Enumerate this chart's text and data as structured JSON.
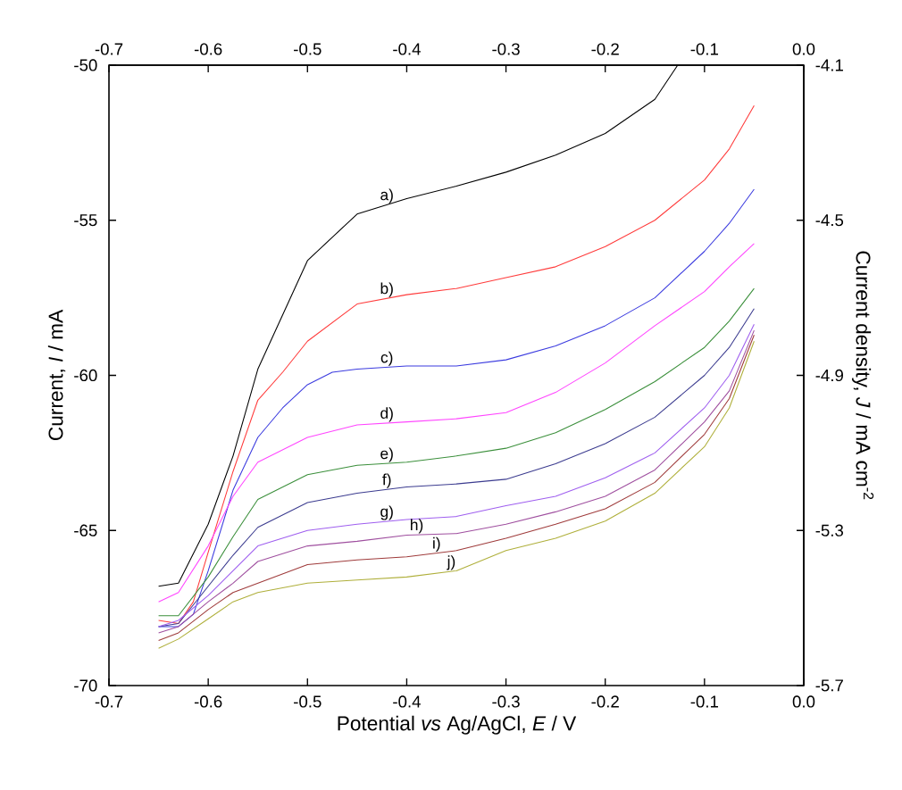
{
  "chart_data": {
    "type": "line",
    "xlabel": "Potential *vs* Ag/AgCl, *E* / V",
    "ylabel": "Current, *I* / mA",
    "y2label": "Current density, *J* / mA cm$^{-2}$",
    "xlim": [
      -0.7,
      0.0
    ],
    "xticks": [
      -0.7,
      -0.6,
      -0.5,
      -0.4,
      -0.3,
      -0.2,
      -0.1,
      {
        "value": 0.0,
        "label": "0.0"
      }
    ],
    "x2lim": [
      -0.7,
      0.0
    ],
    "x2ticks": [
      -0.7,
      -0.6,
      -0.5,
      -0.4,
      -0.3,
      -0.2,
      -0.1,
      {
        "value": 0.0,
        "label": "0.0"
      }
    ],
    "ylim": [
      -70,
      -50
    ],
    "yticks": [
      -70,
      -65,
      -60,
      -55,
      -50
    ],
    "y2lim": [
      -5.7,
      -4.1
    ],
    "y2ticks": [
      -5.7,
      -5.3,
      -4.9,
      -4.5,
      -4.1
    ],
    "marker": "none",
    "line_style": "solid",
    "series": [
      {
        "color": "#000000",
        "x": [
          -0.65,
          -0.63,
          -0.6,
          -0.575,
          -0.55,
          -0.5,
          -0.45,
          -0.4,
          -0.35,
          -0.3,
          -0.25,
          -0.2,
          -0.15,
          -0.127
        ],
        "values": [
          -66.8,
          -66.7,
          -64.8,
          -62.6,
          -59.8,
          -56.3,
          -54.8,
          -54.3,
          -53.9,
          -53.45,
          -52.9,
          -52.2,
          -51.1,
          -50.0
        ]
      },
      {
        "color": "#ff3b3b",
        "x": [
          -0.65,
          -0.63,
          -0.615,
          -0.6,
          -0.575,
          -0.55,
          -0.525,
          -0.5,
          -0.45,
          -0.4,
          -0.35,
          -0.3,
          -0.25,
          -0.2,
          -0.15,
          -0.1,
          -0.075,
          -0.05
        ],
        "values": [
          -67.9,
          -68.0,
          -67.3,
          -65.7,
          -63.1,
          -60.8,
          -59.9,
          -58.9,
          -57.7,
          -57.4,
          -57.2,
          -56.85,
          -56.5,
          -55.85,
          -55.0,
          -53.7,
          -52.7,
          -51.3
        ]
      },
      {
        "color": "#3b3bdf",
        "x": [
          -0.65,
          -0.63,
          -0.615,
          -0.6,
          -0.575,
          -0.55,
          -0.525,
          -0.5,
          -0.475,
          -0.45,
          -0.4,
          -0.35,
          -0.3,
          -0.25,
          -0.2,
          -0.15,
          -0.1,
          -0.075,
          -0.05
        ],
        "values": [
          -68.1,
          -68.1,
          -67.7,
          -66.3,
          -63.7,
          -62.0,
          -61.05,
          -60.3,
          -59.9,
          -59.8,
          -59.7,
          -59.7,
          -59.5,
          -59.05,
          -58.4,
          -57.5,
          -56.0,
          -55.1,
          -54.0
        ]
      },
      {
        "color": "#ff44ff",
        "x": [
          -0.65,
          -0.63,
          -0.6,
          -0.575,
          -0.55,
          -0.5,
          -0.45,
          -0.4,
          -0.35,
          -0.3,
          -0.25,
          -0.2,
          -0.15,
          -0.1,
          -0.075,
          -0.05
        ],
        "values": [
          -67.3,
          -67.0,
          -65.5,
          -63.9,
          -62.8,
          -62.0,
          -61.6,
          -61.5,
          -61.4,
          -61.2,
          -60.55,
          -59.6,
          -58.4,
          -57.3,
          -56.5,
          -55.75
        ]
      },
      {
        "color": "#3b8f3b",
        "x": [
          -0.65,
          -0.63,
          -0.6,
          -0.575,
          -0.55,
          -0.5,
          -0.45,
          -0.4,
          -0.35,
          -0.3,
          -0.25,
          -0.2,
          -0.15,
          -0.1,
          -0.075,
          -0.05
        ],
        "values": [
          -67.75,
          -67.75,
          -66.5,
          -65.2,
          -64.0,
          -63.2,
          -62.9,
          -62.8,
          -62.6,
          -62.35,
          -61.85,
          -61.1,
          -60.2,
          -59.1,
          -58.25,
          -57.2
        ]
      },
      {
        "color": "#3b3b8f",
        "x": [
          -0.65,
          -0.63,
          -0.6,
          -0.575,
          -0.55,
          -0.5,
          -0.45,
          -0.4,
          -0.35,
          -0.3,
          -0.25,
          -0.2,
          -0.15,
          -0.1,
          -0.075,
          -0.05
        ],
        "values": [
          -68.1,
          -68.0,
          -66.8,
          -65.8,
          -64.9,
          -64.1,
          -63.8,
          -63.6,
          -63.5,
          -63.35,
          -62.85,
          -62.2,
          -61.35,
          -60.0,
          -59.1,
          -57.85
        ]
      },
      {
        "color": "#9f5fef",
        "x": [
          -0.65,
          -0.63,
          -0.6,
          -0.575,
          -0.55,
          -0.5,
          -0.45,
          -0.4,
          -0.35,
          -0.3,
          -0.25,
          -0.2,
          -0.15,
          -0.1,
          -0.075,
          -0.05
        ],
        "values": [
          -68.1,
          -67.9,
          -67.1,
          -66.3,
          -65.5,
          -65.0,
          -64.8,
          -64.65,
          -64.55,
          -64.2,
          -63.9,
          -63.3,
          -62.5,
          -61.05,
          -60.0,
          -58.35
        ]
      },
      {
        "color": "#9f4f9f",
        "x": [
          -0.65,
          -0.63,
          -0.6,
          -0.575,
          -0.55,
          -0.5,
          -0.45,
          -0.4,
          -0.35,
          -0.3,
          -0.25,
          -0.2,
          -0.15,
          -0.1,
          -0.075,
          -0.05
        ],
        "values": [
          -68.3,
          -68.1,
          -67.3,
          -66.7,
          -66.0,
          -65.5,
          -65.35,
          -65.15,
          -65.1,
          -64.8,
          -64.4,
          -63.9,
          -63.05,
          -61.5,
          -60.5,
          -58.55
        ]
      },
      {
        "color": "#9f3b3b",
        "x": [
          -0.65,
          -0.63,
          -0.6,
          -0.575,
          -0.55,
          -0.5,
          -0.45,
          -0.4,
          -0.35,
          -0.3,
          -0.25,
          -0.2,
          -0.15,
          -0.1,
          -0.075,
          -0.05
        ],
        "values": [
          -68.55,
          -68.3,
          -67.55,
          -67.0,
          -66.7,
          -66.1,
          -65.95,
          -65.85,
          -65.65,
          -65.25,
          -64.8,
          -64.3,
          -63.45,
          -61.9,
          -60.75,
          -58.7
        ]
      },
      {
        "color": "#afaf3b",
        "x": [
          -0.65,
          -0.63,
          -0.6,
          -0.575,
          -0.55,
          -0.5,
          -0.45,
          -0.4,
          -0.35,
          -0.3,
          -0.25,
          -0.2,
          -0.15,
          -0.1,
          -0.075,
          -0.05
        ],
        "values": [
          -68.8,
          -68.5,
          -67.85,
          -67.3,
          -67.0,
          -66.7,
          -66.6,
          -66.5,
          -66.3,
          -65.65,
          -65.25,
          -64.7,
          -63.8,
          -62.3,
          -61.05,
          -58.9
        ]
      }
    ],
    "annotations": [
      {
        "text": "a)",
        "x": -0.42,
        "y": -54.5
      },
      {
        "text": "b)",
        "x": -0.42,
        "y": -57.52
      },
      {
        "text": "c)",
        "x": -0.42,
        "y": -59.74
      },
      {
        "text": "d)",
        "x": -0.42,
        "y": -61.54
      },
      {
        "text": "e)",
        "x": -0.42,
        "y": -62.84
      },
      {
        "text": "f)",
        "x": -0.42,
        "y": -63.68
      },
      {
        "text": "g)",
        "x": -0.42,
        "y": -64.71
      },
      {
        "text": "h)",
        "x": -0.39,
        "y": -65.14
      },
      {
        "text": "i)",
        "x": -0.37,
        "y": -65.73
      },
      {
        "text": "j)",
        "x": -0.355,
        "y": -66.32
      }
    ]
  }
}
